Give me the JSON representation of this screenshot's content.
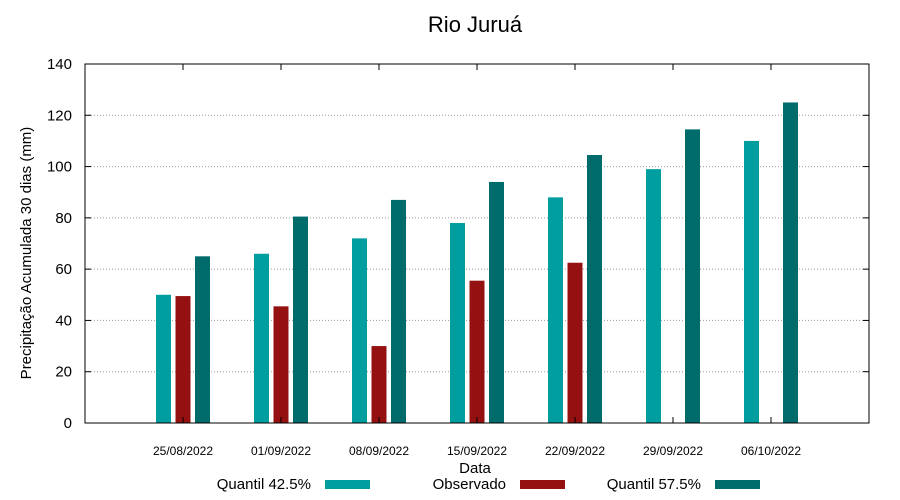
{
  "chart_data": {
    "type": "bar",
    "title": "Rio Juruá",
    "xlabel": "Data",
    "ylabel": "Precipitação Acumulada 30 dias (mm)",
    "ylim": [
      0,
      140
    ],
    "yticks": [
      0,
      20,
      40,
      60,
      80,
      100,
      120,
      140
    ],
    "grid": true,
    "legend_position": "bottom",
    "categories": [
      "25/08/2022",
      "01/09/2022",
      "08/09/2022",
      "15/09/2022",
      "22/09/2022",
      "29/09/2022",
      "06/10/2022"
    ],
    "series": [
      {
        "name": "Quantil 42.5%",
        "color": "#009e9e",
        "values": [
          50,
          66,
          72,
          78,
          88,
          99,
          110
        ]
      },
      {
        "name": "Observado",
        "color": "#951111",
        "values": [
          49.5,
          45.5,
          30,
          55.5,
          62.5,
          null,
          null
        ]
      },
      {
        "name": "Quantil 57.5%",
        "color": "#006b6b",
        "values": [
          65,
          80.5,
          87,
          94,
          104.5,
          114.5,
          125
        ]
      }
    ]
  }
}
